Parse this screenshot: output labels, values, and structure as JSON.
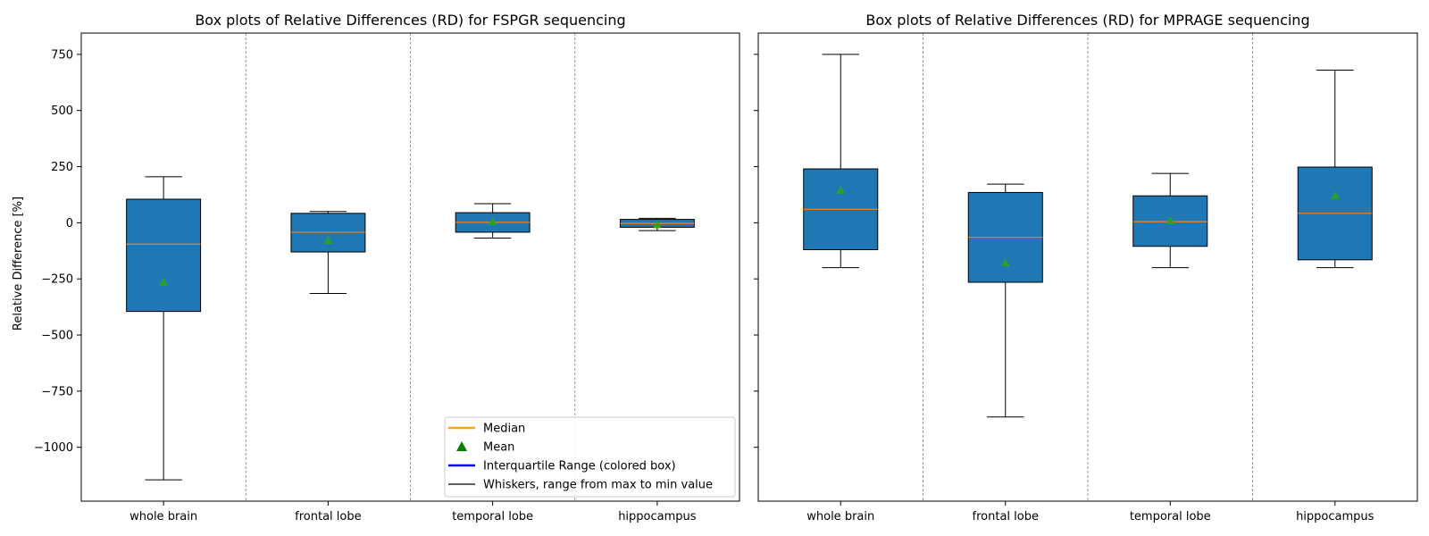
{
  "ylabel": "Relative Difference [%]",
  "legend": {
    "placement": "lower-right",
    "entries": [
      {
        "label": "Median",
        "color": "#ffa500",
        "kind": "line"
      },
      {
        "label": "Mean",
        "color": "#008000",
        "kind": "triangle"
      },
      {
        "label": "Interquartile Range (colored box)",
        "color": "#0000ff",
        "kind": "line"
      },
      {
        "label": "Whiskers, range from max to min value",
        "color": "#000000",
        "kind": "thinline"
      }
    ]
  },
  "colors": {
    "box_fill": "#1f77b4",
    "median": "#ff7f0e",
    "mean": "#2ca02c",
    "whisker": "#000000",
    "separator": "#808080"
  },
  "chart_data": [
    {
      "type": "box",
      "title": "Box plots of Relative Differences (RD) for FSPGR sequencing",
      "ylabel": "Relative Difference [%]",
      "ylim": [
        -1240,
        845
      ],
      "yticks": [
        750,
        500,
        250,
        0,
        -250,
        -500,
        -750,
        -1000
      ],
      "ytick_labels": [
        "750",
        "500",
        "250",
        "0",
        "−250",
        "−500",
        "−750",
        "−1000"
      ],
      "categories": [
        "whole brain",
        "frontal lobe",
        "temporal lobe",
        "hippocampus"
      ],
      "boxes": [
        {
          "min": -1145,
          "q1": -395,
          "median": -95,
          "q3": 105,
          "max": 205,
          "mean": -265
        },
        {
          "min": -315,
          "q1": -130,
          "median": -42,
          "q3": 42,
          "max": 50,
          "mean": -78
        },
        {
          "min": -68,
          "q1": -42,
          "median": 2,
          "q3": 45,
          "max": 85,
          "mean": 5
        },
        {
          "min": -35,
          "q1": -20,
          "median": -3,
          "q3": 15,
          "max": 20,
          "mean": -8
        }
      ],
      "grid": false
    },
    {
      "type": "box",
      "title": "Box plots of Relative Differences (RD) for MPRAGE sequencing",
      "ylim": [
        -1240,
        845
      ],
      "categories": [
        "whole brain",
        "frontal lobe",
        "temporal lobe",
        "hippocampus"
      ],
      "boxes": [
        {
          "min": -200,
          "q1": -120,
          "median": 60,
          "q3": 240,
          "max": 750,
          "mean": 145
        },
        {
          "min": -865,
          "q1": -265,
          "median": -65,
          "q3": 135,
          "max": 172,
          "mean": -178
        },
        {
          "min": -200,
          "q1": -105,
          "median": 5,
          "q3": 120,
          "max": 220,
          "mean": 10
        },
        {
          "min": -200,
          "q1": -165,
          "median": 42,
          "q3": 248,
          "max": 680,
          "mean": 122
        }
      ],
      "grid": false
    }
  ]
}
